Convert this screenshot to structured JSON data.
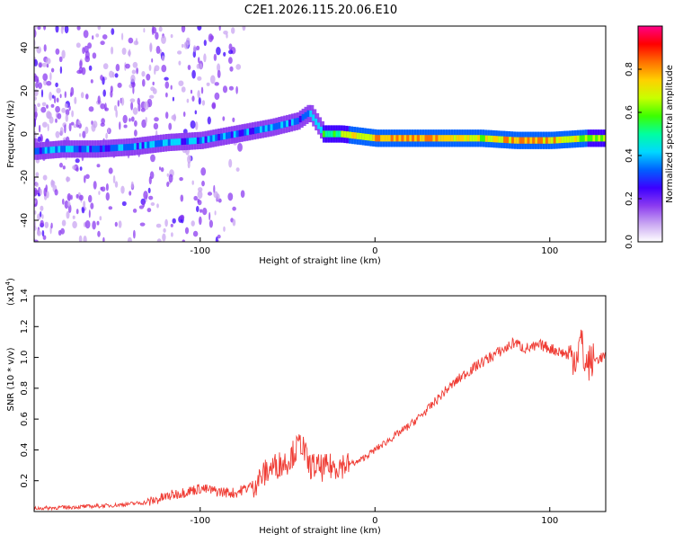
{
  "figure": {
    "title": "C2E1.2026.115.20.06.E10"
  },
  "chart_data": [
    {
      "type": "heatmap",
      "title": "C2E1.2026.115.20.06.E10",
      "xlabel": "Height of straight line (km)",
      "ylabel": "Frequency (Hz)",
      "xlim": [
        -195,
        132
      ],
      "ylim": [
        -50,
        50
      ],
      "xticks": [
        -100,
        0,
        100
      ],
      "yticks": [
        -40,
        -20,
        0,
        20,
        40
      ],
      "colorbar": {
        "label": "Normalized spectral amplitude",
        "range": [
          0,
          1
        ],
        "ticks": [
          "0.0",
          "0.2",
          "0.4",
          "0.6",
          "0.8"
        ],
        "tick_values": [
          0.0,
          0.2,
          0.4,
          0.6,
          0.8
        ],
        "colors": [
          "#ffffff",
          "#c9a6f2",
          "#8c3cf0",
          "#3c00ff",
          "#0060ff",
          "#00d8ff",
          "#00ffa0",
          "#3cff00",
          "#c8ff00",
          "#ffd000",
          "#ff7000",
          "#ff0000",
          "#ff0088"
        ]
      },
      "ridge_frequency": {
        "x": [
          -195,
          -180,
          -160,
          -140,
          -120,
          -100,
          -80,
          -60,
          -45,
          -38,
          -30,
          -20,
          -10,
          0,
          20,
          40,
          60,
          80,
          100,
          120,
          132
        ],
        "freq": [
          -8,
          -7,
          -7,
          -6,
          -4,
          -3,
          0,
          3,
          6,
          10,
          0,
          0,
          -1,
          -2,
          -2,
          -2,
          -2,
          -3,
          -3,
          -2,
          -2
        ]
      },
      "ridge_amplitude": {
        "x": [
          -195,
          -180,
          -160,
          -140,
          -120,
          -100,
          -80,
          -60,
          -45,
          -38,
          -30,
          -20,
          -10,
          0,
          20,
          40,
          60,
          80,
          100,
          120,
          132
        ],
        "amp": [
          0.35,
          0.35,
          0.3,
          0.35,
          0.35,
          0.35,
          0.35,
          0.35,
          0.35,
          0.3,
          0.5,
          0.6,
          0.7,
          0.75,
          0.8,
          0.75,
          0.65,
          0.8,
          0.75,
          0.65,
          0.6
        ]
      }
    },
    {
      "type": "line",
      "xlabel": "Height of straight line (km)",
      "ylabel": "SNR (10 * v/v)",
      "y_multiplier_label": "(x10",
      "y_multiplier_exp": "4",
      "y_multiplier_close": ")",
      "xlim": [
        -195,
        132
      ],
      "ylim": [
        0,
        1.4
      ],
      "xticks": [
        -100,
        0,
        100
      ],
      "yticks": [
        "0.2",
        "0.4",
        "0.6",
        "0.8",
        "1.0",
        "1.2",
        "1.4"
      ],
      "ytick_values": [
        0.2,
        0.4,
        0.6,
        0.8,
        1.0,
        1.2,
        1.4
      ],
      "series": [
        {
          "name": "SNR",
          "color": "#ef3b33",
          "x": [
            -195,
            -170,
            -150,
            -130,
            -115,
            -100,
            -90,
            -80,
            -70,
            -60,
            -50,
            -42,
            -38,
            -30,
            -20,
            -10,
            0,
            10,
            20,
            30,
            40,
            50,
            60,
            70,
            75,
            80,
            85,
            90,
            95,
            100,
            105,
            110,
            115,
            118,
            120,
            125,
            132
          ],
          "values": [
            0.02,
            0.03,
            0.04,
            0.06,
            0.11,
            0.15,
            0.13,
            0.12,
            0.17,
            0.28,
            0.33,
            0.45,
            0.3,
            0.28,
            0.3,
            0.32,
            0.4,
            0.48,
            0.56,
            0.66,
            0.78,
            0.88,
            0.96,
            1.03,
            1.06,
            1.1,
            1.06,
            1.06,
            1.08,
            1.06,
            1.04,
            1.02,
            1.0,
            1.12,
            0.95,
            0.98,
            1.01
          ]
        }
      ]
    }
  ]
}
